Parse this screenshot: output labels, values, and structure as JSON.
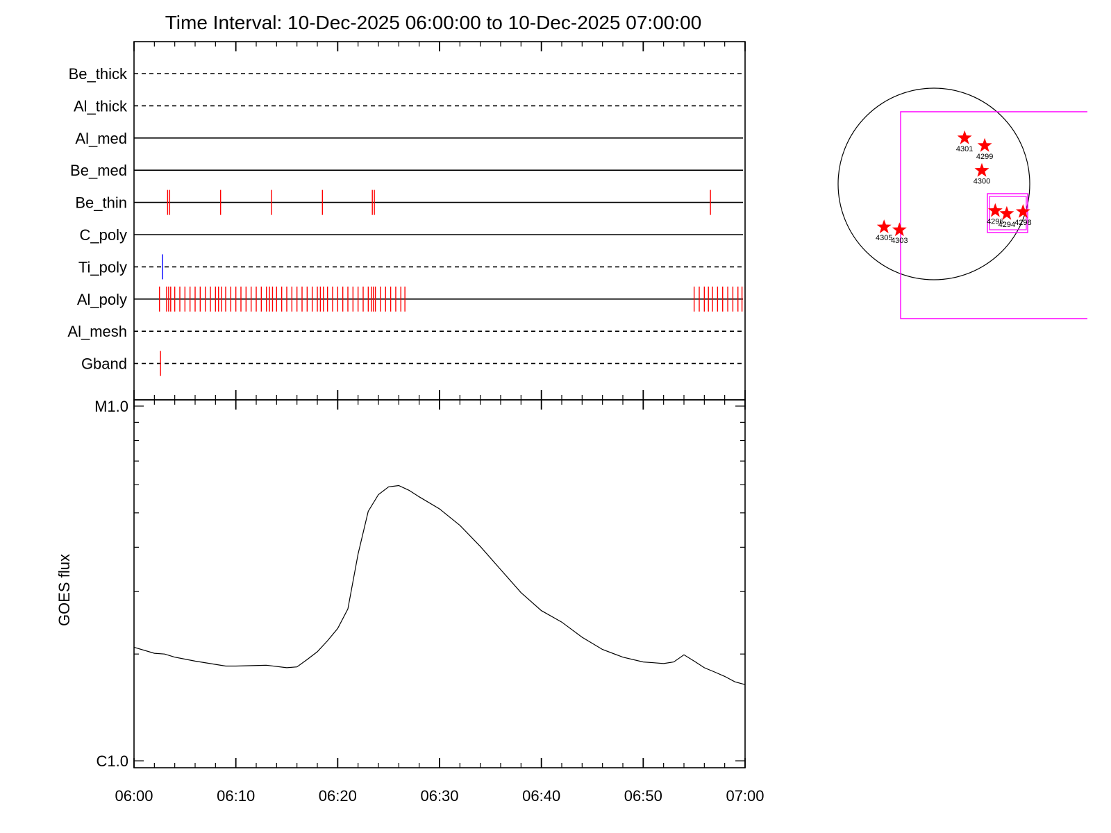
{
  "title": "Time Interval: 10-Dec-2025 06:00:00 to 10-Dec-2025 07:00:00",
  "colors": {
    "accent": "#ff0000",
    "blue": "#0000ff",
    "magenta": "#ff00ff",
    "axis": "#000000"
  },
  "chart_data": [
    {
      "type": "timeline",
      "x_start_min": 0,
      "x_end_min": 60,
      "channels": [
        {
          "name": "Be_thick",
          "style": "dashed",
          "events": [],
          "color": "#ff0000"
        },
        {
          "name": "Al_thick",
          "style": "dashed",
          "events": [],
          "color": "#ff0000"
        },
        {
          "name": "Al_med",
          "style": "solid",
          "events": [],
          "color": "#ff0000"
        },
        {
          "name": "Be_med",
          "style": "solid",
          "events": [],
          "color": "#ff0000"
        },
        {
          "name": "Be_thin",
          "style": "solid",
          "color": "#ff0000",
          "events": [
            3.3,
            3.5,
            8.5,
            13.5,
            18.5,
            23.4,
            23.6,
            56.6
          ]
        },
        {
          "name": "C_poly",
          "style": "solid",
          "events": [],
          "color": "#ff0000"
        },
        {
          "name": "Ti_poly",
          "style": "dashed",
          "color": "#0000ff",
          "events": [
            2.8
          ]
        },
        {
          "name": "Al_poly",
          "style": "solid",
          "color": "#ff0000",
          "events": [
            2.5,
            3.2,
            3.4,
            3.6,
            4.0,
            4.5,
            5.0,
            5.5,
            6.0,
            6.5,
            7.0,
            7.5,
            8.0,
            8.3,
            8.6,
            9.0,
            9.5,
            10.0,
            10.5,
            11.0,
            11.5,
            12.0,
            12.5,
            13.0,
            13.3,
            13.6,
            14.0,
            14.5,
            15.0,
            15.5,
            16.0,
            16.5,
            17.0,
            17.5,
            18.0,
            18.3,
            18.6,
            19.0,
            19.5,
            20.0,
            20.5,
            21.0,
            21.5,
            22.0,
            22.5,
            23.0,
            23.3,
            23.5,
            23.7,
            24.2,
            24.7,
            25.2,
            25.7,
            26.2,
            26.6,
            55.0,
            55.5,
            56.0,
            56.4,
            56.8,
            57.3,
            57.8,
            58.3,
            58.8,
            59.3,
            59.7
          ]
        },
        {
          "name": "Al_mesh",
          "style": "dashed",
          "events": [],
          "color": "#ff0000"
        },
        {
          "name": "Gband",
          "style": "dashed",
          "color": "#ff0000",
          "events": [
            2.6
          ]
        }
      ]
    },
    {
      "type": "line",
      "ylabel": "GOES flux",
      "yscale": "log",
      "ylim": [
        1e-06,
        1e-05
      ],
      "ytick_labels": [
        {
          "label": "C1.0",
          "value": 1e-06
        },
        {
          "label": "M1.0",
          "value": 1e-05
        }
      ],
      "xtick_labels": [
        "06:00",
        "06:10",
        "06:20",
        "06:30",
        "06:40",
        "06:50",
        "07:00"
      ],
      "x": [
        0,
        2,
        3,
        4,
        6,
        8,
        9,
        10,
        13,
        15,
        16,
        17,
        18,
        19,
        20,
        21,
        22,
        23,
        24,
        25,
        26,
        27,
        28,
        30,
        32,
        34,
        36,
        38,
        40,
        42,
        44,
        46,
        48,
        50,
        51,
        52,
        53,
        54,
        55,
        56,
        57,
        58,
        59,
        60
      ],
      "y": [
        2.09e-06,
        2.01e-06,
        2e-06,
        1.96e-06,
        1.91e-06,
        1.87e-06,
        1.85e-06,
        1.85e-06,
        1.86e-06,
        1.83e-06,
        1.84e-06,
        1.93e-06,
        2.03e-06,
        2.18e-06,
        2.36e-06,
        2.68e-06,
        3.83e-06,
        5.05e-06,
        5.63e-06,
        5.92e-06,
        5.97e-06,
        5.79e-06,
        5.55e-06,
        5.13e-06,
        4.61e-06,
        4.02e-06,
        3.46e-06,
        2.98e-06,
        2.65e-06,
        2.46e-06,
        2.23e-06,
        2.06e-06,
        1.96e-06,
        1.9e-06,
        1.89e-06,
        1.88e-06,
        1.9e-06,
        1.99e-06,
        1.91e-06,
        1.83e-06,
        1.78e-06,
        1.73e-06,
        1.67e-06,
        1.64e-06
      ],
      "color": "#000000"
    },
    {
      "type": "scatter",
      "series": [
        {
          "markers": [
            {
              "label": "4301",
              "x": 0.32,
              "y": 0.48
            },
            {
              "label": "4299",
              "x": 0.53,
              "y": 0.4
            },
            {
              "label": "4300",
              "x": 0.5,
              "y": 0.14
            },
            {
              "label": "4296",
              "x": 0.64,
              "y": -0.28
            },
            {
              "label": "4294",
              "x": 0.76,
              "y": -0.31
            },
            {
              "label": "4298",
              "x": 0.93,
              "y": -0.29
            },
            {
              "label": "4305",
              "x": -0.52,
              "y": -0.45
            },
            {
              "label": "4303",
              "x": -0.36,
              "y": -0.48
            }
          ]
        }
      ],
      "xlim": [
        -1,
        1
      ],
      "ylim": [
        -1,
        1
      ],
      "marker": "star",
      "marker_color": "#ff0000",
      "box_color": "#ff00ff"
    }
  ]
}
